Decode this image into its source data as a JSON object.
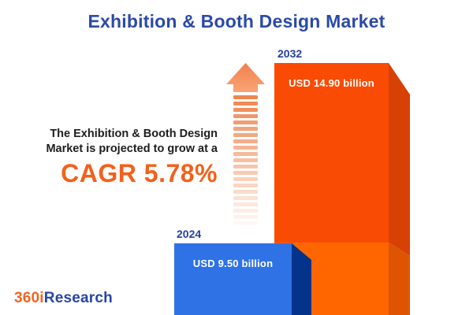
{
  "title": "Exhibition & Booth Design Market",
  "headline": {
    "line1": "The Exhibition & Booth Design",
    "line2": "Market is projected to grow at a",
    "cagr": "CAGR 5.78%"
  },
  "bars": [
    {
      "year": "2024",
      "value_label": "USD 9.50 billion"
    },
    {
      "year": "2032",
      "value_label": "USD 14.90 billion"
    }
  ],
  "logo": {
    "part1": "360i",
    "part2": "Research"
  },
  "chart_data": {
    "type": "bar",
    "categories": [
      "2024",
      "2032"
    ],
    "values": [
      9.5,
      14.9
    ],
    "unit": "USD billion",
    "value_labels": [
      "USD 9.50 billion",
      "USD 14.90 billion"
    ],
    "title": "Exhibition & Booth Design Market",
    "annotations": [
      "The Exhibition & Booth Design Market is projected to grow at a CAGR 5.78%"
    ],
    "cagr_percent": 5.78,
    "orientation": "vertical",
    "bar_colors": [
      "#2F72E6",
      "#FA4B04"
    ],
    "legend": "none",
    "grid": false
  },
  "colors": {
    "background": "#FFFFFF",
    "title_blue": "#2B4AA7",
    "year_label_blue": "#24419B",
    "text_dark": "#1D1D1F",
    "accent_orange": "#F4601A",
    "bar_blue_face": "#2F72E6",
    "bar_blue_bevel": "#04338C",
    "bar_orange_face": "#FA4B04",
    "bar_orange_bevel": "#D84105",
    "bar_orange_light_face": "#FF6600",
    "bar_orange_light_bevel": "#DD5502",
    "arrow_head_top": "#F37F4C",
    "arrow_head_bottom": "#F8A475",
    "arrow_stripe": "#EE7F46",
    "logo_orange": "#F26522",
    "logo_blue": "#2745A5",
    "value_text": "#FFFFFF"
  }
}
